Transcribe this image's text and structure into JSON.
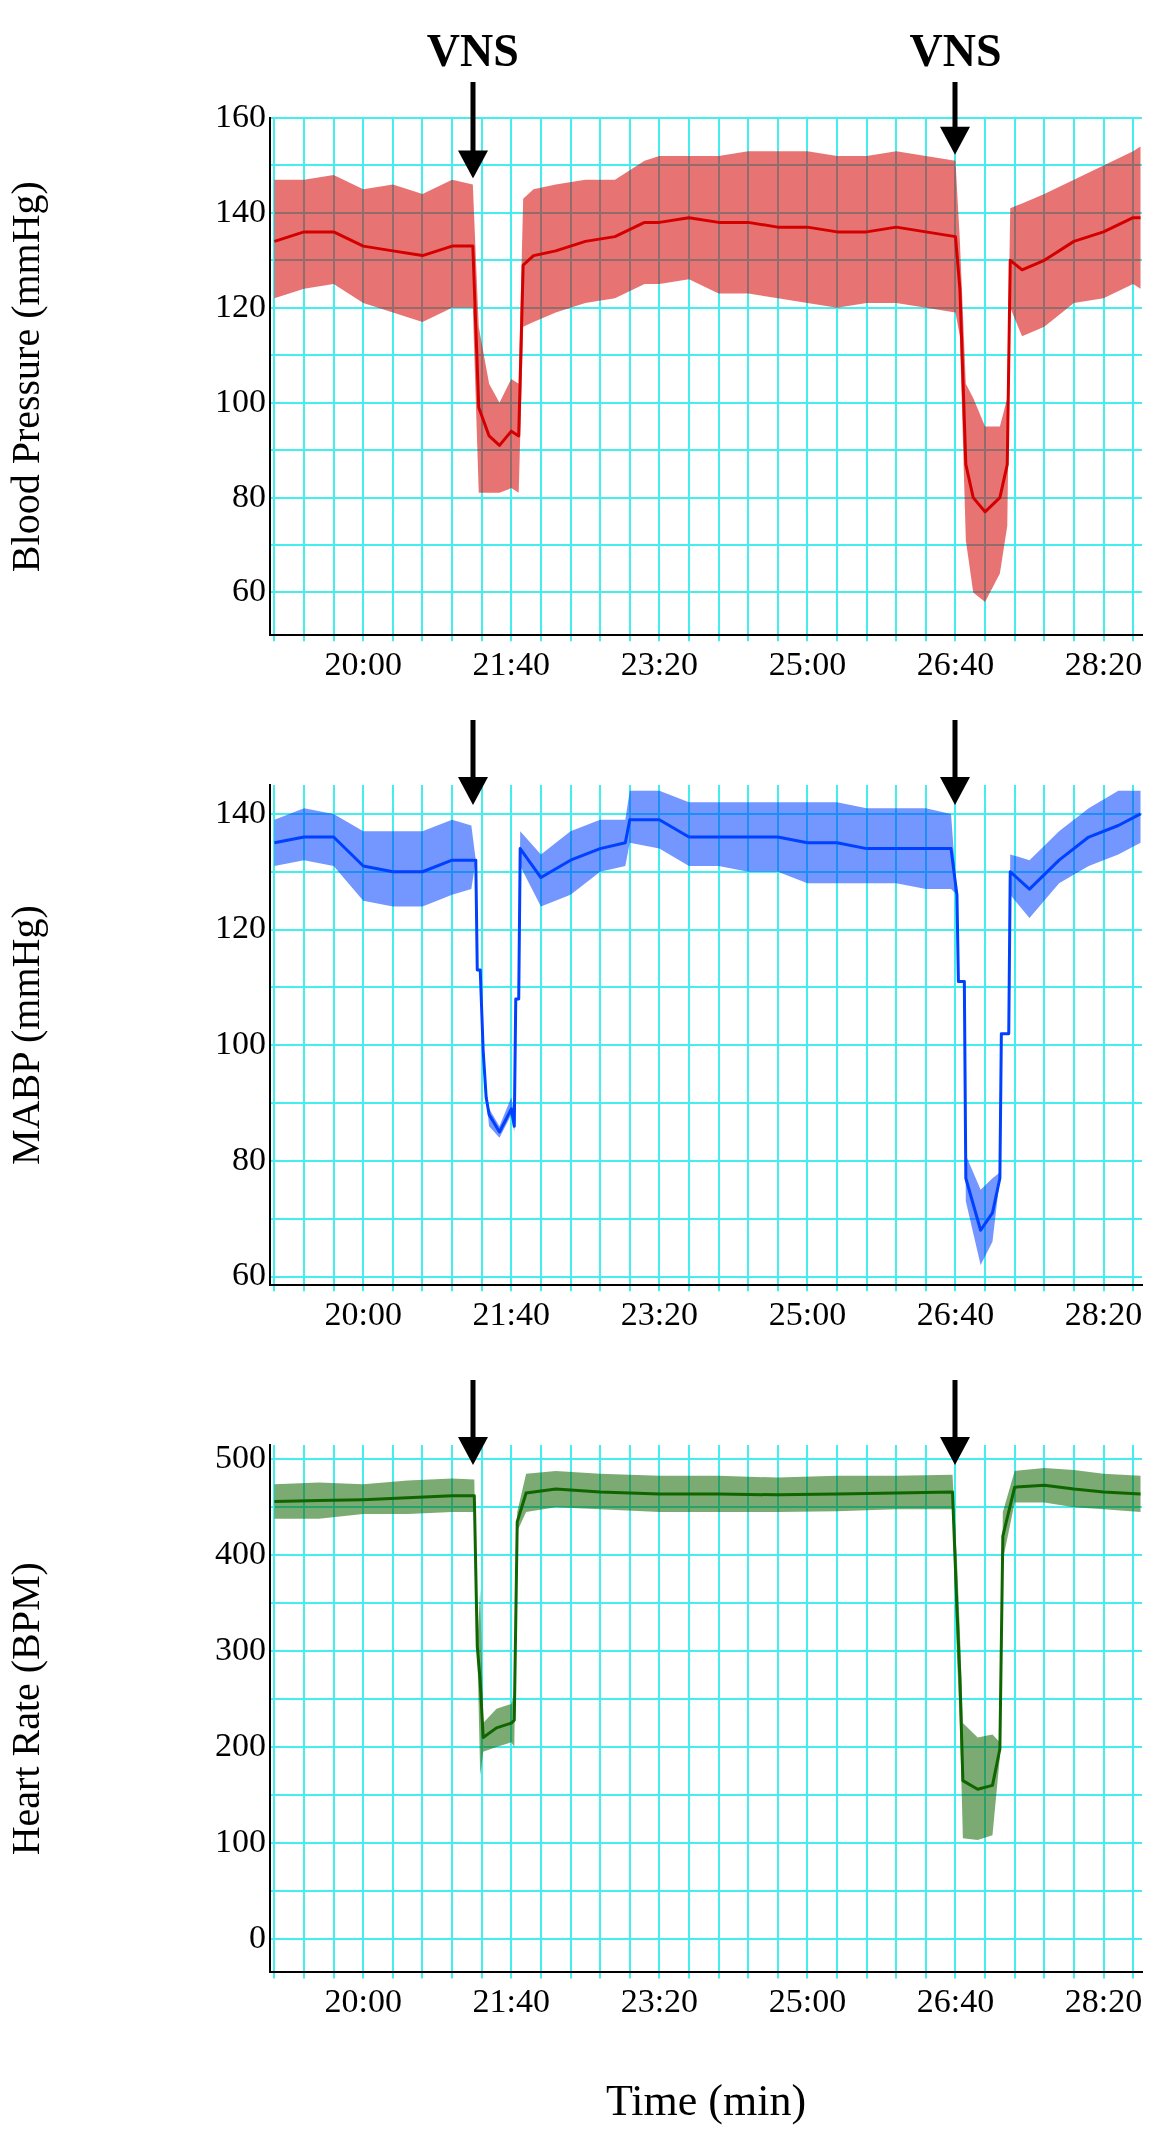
{
  "chart_data": [
    {
      "type": "line",
      "ylabel": "Blood Pressure (mmHg)",
      "grid": true,
      "xlim": [
        1137,
        1726
      ],
      "xticks": [
        {
          "value": 1140,
          "label": null
        },
        {
          "value": 1160,
          "label": null
        },
        {
          "value": 1180,
          "label": null
        },
        {
          "value": 1200,
          "label": "20:00"
        },
        {
          "value": 1220,
          "label": null
        },
        {
          "value": 1240,
          "label": null
        },
        {
          "value": 1260,
          "label": null
        },
        {
          "value": 1280,
          "label": null
        },
        {
          "value": 1300,
          "label": "21:40"
        },
        {
          "value": 1320,
          "label": null
        },
        {
          "value": 1340,
          "label": null
        },
        {
          "value": 1360,
          "label": null
        },
        {
          "value": 1380,
          "label": null
        },
        {
          "value": 1400,
          "label": "23:20"
        },
        {
          "value": 1420,
          "label": null
        },
        {
          "value": 1440,
          "label": null
        },
        {
          "value": 1460,
          "label": null
        },
        {
          "value": 1480,
          "label": null
        },
        {
          "value": 1500,
          "label": "25:00"
        },
        {
          "value": 1520,
          "label": null
        },
        {
          "value": 1540,
          "label": null
        },
        {
          "value": 1560,
          "label": null
        },
        {
          "value": 1580,
          "label": null
        },
        {
          "value": 1600,
          "label": "26:40"
        },
        {
          "value": 1620,
          "label": null
        },
        {
          "value": 1640,
          "label": null
        },
        {
          "value": 1660,
          "label": null
        },
        {
          "value": 1680,
          "label": null
        },
        {
          "value": 1700,
          "label": "28:20"
        },
        {
          "value": 1720,
          "label": null
        }
      ],
      "ylim": [
        51,
        160
      ],
      "yticks": [
        60,
        {
          "value": 70,
          "label": null
        },
        80,
        {
          "value": 90,
          "label": null
        },
        100,
        {
          "value": 110,
          "label": null
        },
        120,
        {
          "value": 130,
          "label": null
        },
        140,
        {
          "value": 150,
          "label": null
        },
        160
      ],
      "annotations": [
        {
          "text": "VNS",
          "x": 1274,
          "y": 146
        },
        {
          "text": "VNS",
          "x": 1600,
          "y": 151
        }
      ],
      "series": [
        {
          "color": "#d40000",
          "x": [
            1140,
            1160,
            1180,
            1200,
            1220,
            1240,
            1260,
            1274,
            1278,
            1285,
            1292,
            1300,
            1305,
            1308,
            1315,
            1330,
            1350,
            1370,
            1390,
            1400,
            1420,
            1440,
            1460,
            1480,
            1500,
            1520,
            1540,
            1560,
            1580,
            1600,
            1603,
            1607,
            1612,
            1620,
            1630,
            1635,
            1637,
            1645,
            1660,
            1680,
            1700,
            1720,
            1725
          ],
          "values": [
            134,
            136,
            136,
            133,
            132,
            131,
            133,
            133,
            99,
            93,
            91,
            94,
            93,
            129,
            131,
            132,
            134,
            135,
            138,
            138,
            139,
            138,
            138,
            137,
            137,
            136,
            136,
            137,
            136,
            135,
            124,
            87,
            80,
            77,
            80,
            87,
            130,
            128,
            130,
            134,
            136,
            139,
            139
          ],
          "lower": [
            122,
            124,
            125,
            121,
            119,
            117,
            120,
            120,
            81,
            81,
            81,
            82,
            81,
            116,
            117,
            119,
            121,
            122,
            125,
            125,
            126,
            123,
            123,
            122,
            121,
            120,
            121,
            121,
            120,
            119,
            114,
            71,
            60,
            58,
            64,
            74,
            120,
            114,
            116,
            121,
            122,
            125,
            124
          ],
          "upper": [
            147,
            147,
            148,
            145,
            146,
            144,
            147,
            146,
            116,
            104,
            100,
            105,
            104,
            143,
            145,
            146,
            147,
            147,
            151,
            152,
            152,
            152,
            153,
            153,
            153,
            152,
            152,
            153,
            152,
            151,
            134,
            104,
            101,
            95,
            95,
            101,
            141,
            142,
            144,
            147,
            150,
            153,
            154
          ]
        }
      ]
    },
    {
      "type": "line",
      "ylabel": "MABP (mmHg)",
      "grid": true,
      "xlim": [
        1137,
        1726
      ],
      "xticks": [
        {
          "value": 1140,
          "label": null
        },
        {
          "value": 1160,
          "label": null
        },
        {
          "value": 1180,
          "label": null
        },
        {
          "value": 1200,
          "label": "20:00"
        },
        {
          "value": 1220,
          "label": null
        },
        {
          "value": 1240,
          "label": null
        },
        {
          "value": 1260,
          "label": null
        },
        {
          "value": 1280,
          "label": null
        },
        {
          "value": 1300,
          "label": "21:40"
        },
        {
          "value": 1320,
          "label": null
        },
        {
          "value": 1340,
          "label": null
        },
        {
          "value": 1360,
          "label": null
        },
        {
          "value": 1380,
          "label": null
        },
        {
          "value": 1400,
          "label": "23:20"
        },
        {
          "value": 1420,
          "label": null
        },
        {
          "value": 1440,
          "label": null
        },
        {
          "value": 1460,
          "label": null
        },
        {
          "value": 1480,
          "label": null
        },
        {
          "value": 1500,
          "label": "25:00"
        },
        {
          "value": 1520,
          "label": null
        },
        {
          "value": 1540,
          "label": null
        },
        {
          "value": 1560,
          "label": null
        },
        {
          "value": 1580,
          "label": null
        },
        {
          "value": 1600,
          "label": "26:40"
        },
        {
          "value": 1620,
          "label": null
        },
        {
          "value": 1640,
          "label": null
        },
        {
          "value": 1660,
          "label": null
        },
        {
          "value": 1680,
          "label": null
        },
        {
          "value": 1700,
          "label": "28:20"
        },
        {
          "value": 1720,
          "label": null
        }
      ],
      "ylim": [
        58.5,
        145
      ],
      "yticks": [
        60,
        {
          "value": 70,
          "label": null
        },
        80,
        {
          "value": 90,
          "label": null
        },
        100,
        {
          "value": 110,
          "label": null
        },
        120,
        {
          "value": 130,
          "label": null
        },
        140
      ],
      "series": [
        {
          "color": "#0040ff",
          "x": [
            1140,
            1160,
            1180,
            1200,
            1220,
            1240,
            1260,
            1273,
            1276,
            1277,
            1279,
            1281,
            1283,
            1285,
            1292,
            1300,
            1302,
            1303,
            1305,
            1306,
            1320,
            1340,
            1360,
            1377,
            1380,
            1400,
            1420,
            1440,
            1460,
            1480,
            1500,
            1520,
            1540,
            1560,
            1580,
            1597,
            1601,
            1602,
            1606,
            1607,
            1617,
            1625,
            1630,
            1631,
            1636,
            1637,
            1650,
            1670,
            1690,
            1710,
            1725
          ],
          "values": [
            135,
            136,
            136,
            131,
            130,
            130,
            132,
            132,
            132,
            113,
            113,
            99,
            91,
            88,
            85,
            89,
            86,
            108,
            108,
            134,
            129,
            132,
            134,
            135,
            139,
            139,
            136,
            136,
            136,
            136,
            135,
            135,
            134,
            134,
            134,
            134,
            126,
            111,
            111,
            77,
            68,
            71,
            77,
            102,
            102,
            130,
            127,
            132,
            136,
            138,
            140
          ],
          "lower": [
            131,
            132,
            131,
            125,
            124,
            124,
            126,
            127,
            132,
            113,
            113,
            99,
            91,
            86,
            84,
            88,
            85,
            108,
            108,
            131,
            124,
            126,
            130,
            131,
            135,
            134,
            131,
            131,
            130,
            130,
            128,
            128,
            128,
            128,
            127,
            127,
            126,
            111,
            111,
            73,
            62,
            66,
            77,
            102,
            102,
            126,
            122,
            128,
            131,
            133,
            135
          ],
          "upper": [
            139,
            141,
            140,
            137,
            137,
            137,
            139,
            138,
            132,
            113,
            113,
            99,
            91,
            89,
            86,
            91,
            88,
            108,
            108,
            137,
            133,
            137,
            139,
            139,
            144,
            144,
            142,
            142,
            142,
            142,
            142,
            142,
            141,
            141,
            141,
            140,
            126,
            111,
            111,
            81,
            75,
            77,
            78,
            102,
            102,
            133,
            132,
            137,
            141,
            144,
            144
          ]
        }
      ]
    },
    {
      "type": "line",
      "ylabel": "Heart Rate (BPM)",
      "xlabel": "Time (min)",
      "grid": true,
      "xlim": [
        1137,
        1726
      ],
      "xticks": [
        {
          "value": 1140,
          "label": null
        },
        {
          "value": 1160,
          "label": null
        },
        {
          "value": 1180,
          "label": null
        },
        {
          "value": 1200,
          "label": "20:00"
        },
        {
          "value": 1220,
          "label": null
        },
        {
          "value": 1240,
          "label": null
        },
        {
          "value": 1260,
          "label": null
        },
        {
          "value": 1280,
          "label": null
        },
        {
          "value": 1300,
          "label": "21:40"
        },
        {
          "value": 1320,
          "label": null
        },
        {
          "value": 1340,
          "label": null
        },
        {
          "value": 1360,
          "label": null
        },
        {
          "value": 1380,
          "label": null
        },
        {
          "value": 1400,
          "label": "23:20"
        },
        {
          "value": 1420,
          "label": null
        },
        {
          "value": 1440,
          "label": null
        },
        {
          "value": 1460,
          "label": null
        },
        {
          "value": 1480,
          "label": null
        },
        {
          "value": 1500,
          "label": "25:00"
        },
        {
          "value": 1520,
          "label": null
        },
        {
          "value": 1540,
          "label": null
        },
        {
          "value": 1560,
          "label": null
        },
        {
          "value": 1580,
          "label": null
        },
        {
          "value": 1600,
          "label": "26:40"
        },
        {
          "value": 1620,
          "label": null
        },
        {
          "value": 1640,
          "label": null
        },
        {
          "value": 1660,
          "label": null
        },
        {
          "value": 1680,
          "label": null
        },
        {
          "value": 1700,
          "label": "28:20"
        },
        {
          "value": 1720,
          "label": null
        }
      ],
      "ylim": [
        -35,
        515
      ],
      "yticks": [
        0,
        {
          "value": 50,
          "label": null
        },
        100,
        {
          "value": 150,
          "label": null
        },
        200,
        {
          "value": 250,
          "label": null
        },
        300,
        {
          "value": 350,
          "label": null
        },
        400,
        {
          "value": 450,
          "label": null
        },
        500
      ],
      "series": [
        {
          "color": "#0f6600",
          "x": [
            1140,
            1170,
            1200,
            1230,
            1260,
            1275,
            1277,
            1279,
            1281,
            1290,
            1300,
            1302,
            1304,
            1310,
            1330,
            1360,
            1400,
            1440,
            1480,
            1520,
            1560,
            1598,
            1601,
            1603,
            1605,
            1615,
            1625,
            1630,
            1632,
            1640,
            1660,
            1680,
            1700,
            1725
          ],
          "values": [
            456,
            457,
            458,
            460,
            462,
            462,
            305,
            268,
            210,
            220,
            225,
            228,
            435,
            465,
            469,
            466,
            464,
            464,
            463,
            464,
            465,
            466,
            345,
            272,
            165,
            156,
            160,
            198,
            420,
            471,
            473,
            469,
            466,
            464
          ],
          "lower": [
            438,
            438,
            443,
            443,
            445,
            445,
            305,
            170,
            195,
            200,
            205,
            200,
            425,
            445,
            450,
            448,
            445,
            445,
            445,
            446,
            448,
            448,
            295,
            225,
            105,
            103,
            108,
            190,
            395,
            455,
            455,
            450,
            448,
            445
          ],
          "upper": [
            474,
            476,
            474,
            478,
            480,
            479,
            305,
            365,
            225,
            240,
            245,
            255,
            445,
            485,
            488,
            485,
            483,
            483,
            481,
            483,
            483,
            484,
            395,
            320,
            225,
            210,
            213,
            205,
            445,
            488,
            491,
            489,
            485,
            483
          ]
        }
      ]
    }
  ]
}
